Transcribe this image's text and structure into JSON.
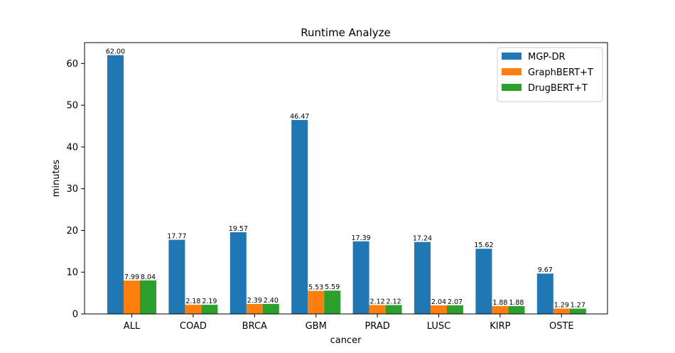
{
  "chart_data": {
    "type": "bar",
    "title": "Runtime Analyze",
    "xlabel": "cancer",
    "ylabel": "minutes",
    "categories": [
      "ALL",
      "COAD",
      "BRCA",
      "GBM",
      "PRAD",
      "LUSC",
      "KIRP",
      "OSTE"
    ],
    "series": [
      {
        "name": "MGP-DR",
        "color": "#1f77b4",
        "values": [
          62.0,
          17.77,
          19.57,
          46.47,
          17.39,
          17.24,
          15.62,
          9.67
        ]
      },
      {
        "name": "GraphBERT+T",
        "color": "#ff7f0e",
        "values": [
          7.99,
          2.18,
          2.39,
          5.53,
          2.12,
          2.04,
          1.88,
          1.29
        ]
      },
      {
        "name": "DrugBERT+T",
        "color": "#2ca02c",
        "values": [
          8.04,
          2.19,
          2.4,
          5.59,
          2.12,
          2.07,
          1.88,
          1.27
        ]
      }
    ],
    "ylim": [
      0,
      65
    ],
    "yticks": [
      0,
      10,
      20,
      30,
      40,
      50,
      60
    ],
    "legend_position": "top-right",
    "grid": false
  }
}
